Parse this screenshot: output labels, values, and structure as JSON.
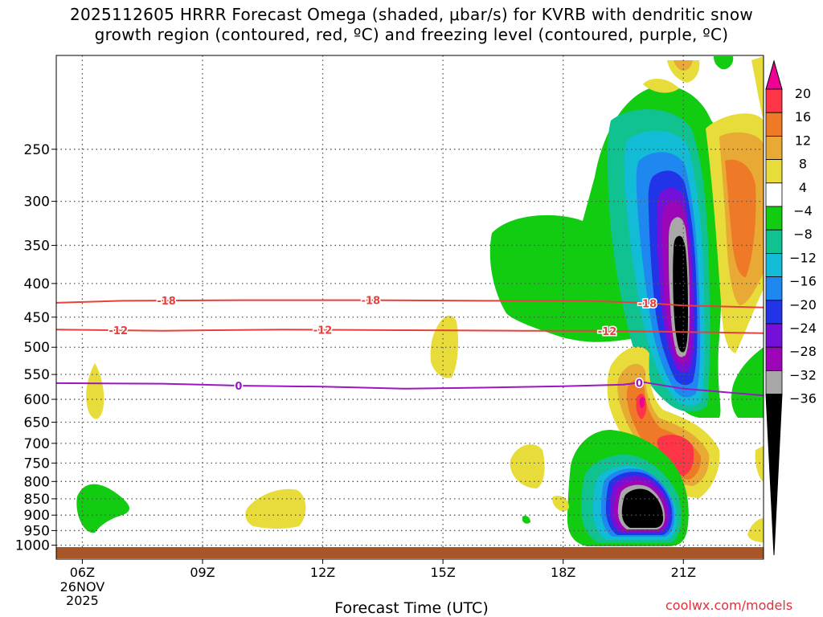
{
  "chart_data": {
    "type": "contour",
    "title_line1": "2025112605 HRRR Forecast Omega (shaded, μbar/s) for KVRB with dendritic snow",
    "title_line2": "growth region (contoured, red, ºC) and freezing level (contoured, purple, ºC)",
    "xlabel": "Forecast Time (UTC)",
    "x_ticks": [
      {
        "hour": 6,
        "label": "06Z"
      },
      {
        "hour": 9,
        "label": "09Z"
      },
      {
        "hour": 12,
        "label": "12Z"
      },
      {
        "hour": 15,
        "label": "15Z"
      },
      {
        "hour": 18,
        "label": "18Z"
      },
      {
        "hour": 21,
        "label": "21Z"
      }
    ],
    "date_label": [
      "26NOV",
      "2025"
    ],
    "xlim": [
      5.35,
      23.0
    ],
    "ylim": [
      1050,
      180
    ],
    "y_scale": "log",
    "y_ticks": [
      250,
      300,
      350,
      400,
      450,
      500,
      550,
      600,
      650,
      700,
      750,
      800,
      850,
      900,
      950,
      1000
    ],
    "grid": true,
    "colorbar": {
      "labels": [
        "20",
        "16",
        "12",
        "8",
        "4",
        "−4",
        "−8",
        "−12",
        "−16",
        "−20",
        "−24",
        "−28",
        "−32",
        "−36"
      ],
      "colors": [
        "#ee0095",
        "#fd3546",
        "#ee7a28",
        "#e8a935",
        "#e8dc3a",
        "#ffffff",
        "#12cc12",
        "#10c290",
        "#12bcd6",
        "#1f88f0",
        "#2134e8",
        "#7410d8",
        "#9d06b6",
        "#a8a8a8",
        "#000000"
      ]
    },
    "contours": [
      {
        "name": "dendritic",
        "color": "#e8403c",
        "label": "-18",
        "points": [
          [
            5.35,
            428
          ],
          [
            7,
            425
          ],
          [
            10,
            424
          ],
          [
            13,
            424
          ],
          [
            16,
            425
          ],
          [
            18.5,
            425
          ],
          [
            20,
            428
          ],
          [
            21,
            432
          ],
          [
            23,
            435
          ]
        ],
        "label_hours": [
          8.1,
          13.2,
          20.1
        ]
      },
      {
        "name": "dendritic",
        "color": "#e8403c",
        "label": "-12",
        "points": [
          [
            5.35,
            470
          ],
          [
            8,
            472
          ],
          [
            11,
            470
          ],
          [
            14,
            471
          ],
          [
            17,
            472
          ],
          [
            19,
            472
          ],
          [
            21,
            474
          ],
          [
            23,
            476
          ]
        ],
        "label_hours": [
          6.9,
          12.0,
          19.1
        ]
      },
      {
        "name": "freezing",
        "color": "#9b17c0",
        "label": "0",
        "points": [
          [
            5.35,
            567
          ],
          [
            8,
            568
          ],
          [
            10,
            572
          ],
          [
            12,
            574
          ],
          [
            14,
            578
          ],
          [
            16,
            576
          ],
          [
            18,
            573
          ],
          [
            19.5,
            570
          ],
          [
            20,
            565
          ],
          [
            21,
            578
          ],
          [
            22,
            585
          ],
          [
            23,
            592
          ]
        ],
        "label_hours": [
          9.9,
          19.9
        ]
      }
    ],
    "terrain_color": "#a85528",
    "credit": "coolwx.com/models"
  }
}
